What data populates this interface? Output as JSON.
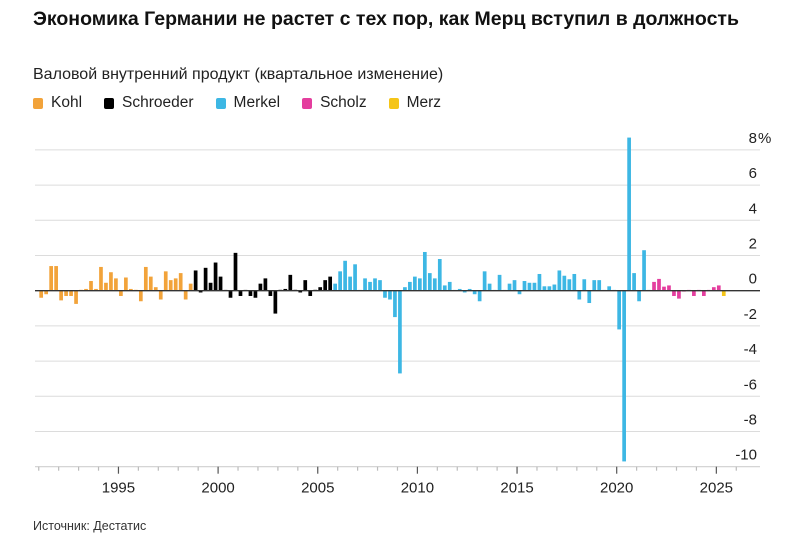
{
  "title": "Экономика Германии не растет с тех пор, как Мерц вступил в должность",
  "subtitle": "Валовой внутренний продукт (квартальное изменение)",
  "source": "Источник: Дестатис",
  "legend": [
    {
      "name": "Kohl",
      "color": "#F2A33A"
    },
    {
      "name": "Schroeder",
      "color": "#000000"
    },
    {
      "name": "Merkel",
      "color": "#3DB7E4"
    },
    {
      "name": "Scholz",
      "color": "#E43E9E"
    },
    {
      "name": "Merz",
      "color": "#F5C518"
    }
  ],
  "chart_data": {
    "type": "bar",
    "title": "Экономика Германии не растет с тех пор, как Мерц вступил в должность",
    "subtitle": "Валовой внутренний продукт (квартальное изменение)",
    "frequency": "quarterly",
    "start_quarter": "1991-Q1",
    "ylim": [
      -10,
      8
    ],
    "yticks": [
      -10,
      -8,
      -6,
      -4,
      -2,
      0,
      2,
      4,
      6,
      8
    ],
    "y_unit": "%",
    "y_axis_position": "right",
    "xticks": [
      1995,
      2000,
      2005,
      2010,
      2015,
      2020,
      2025
    ],
    "xlim": [
      1990.7,
      2026.9
    ],
    "grid": true,
    "legend_position": "top-left",
    "series": [
      {
        "name": "Kohl",
        "color": "#F2A33A",
        "values": [
          -0.4,
          -0.2,
          1.4,
          1.4,
          -0.55,
          -0.3,
          -0.3,
          -0.75,
          0.05,
          0.1,
          0.55,
          0.1,
          1.35,
          0.45,
          1.05,
          0.7,
          -0.3,
          0.75,
          0.1,
          0.05,
          -0.6,
          1.35,
          0.8,
          0.2,
          -0.5,
          1.1,
          0.6,
          0.7,
          1.0,
          -0.5,
          0.4
        ]
      },
      {
        "name": "Schroeder",
        "color": "#000000",
        "values": [
          1.15,
          -0.1,
          1.3,
          0.45,
          1.6,
          0.8,
          0.0,
          -0.4,
          2.15,
          -0.3,
          0.0,
          -0.3,
          -0.4,
          0.4,
          0.7,
          -0.3,
          -1.3,
          0.05,
          0.1,
          0.9,
          0.05,
          -0.1,
          0.6,
          -0.3,
          0.05,
          0.2,
          0.6,
          0.8
        ]
      },
      {
        "name": "Merkel",
        "color": "#3DB7E4",
        "values": [
          0.4,
          1.1,
          1.7,
          0.8,
          1.5,
          0.0,
          0.7,
          0.5,
          0.7,
          0.6,
          -0.4,
          -0.5,
          -1.5,
          -4.7,
          0.2,
          0.5,
          0.8,
          0.7,
          2.2,
          1.0,
          0.7,
          1.8,
          0.3,
          0.5,
          0.0,
          0.1,
          -0.1,
          0.1,
          -0.2,
          -0.6,
          1.1,
          0.4,
          0.0,
          0.9,
          0.0,
          0.4,
          0.6,
          -0.2,
          0.55,
          0.45,
          0.45,
          0.95,
          0.25,
          0.25,
          0.35,
          1.15,
          0.85,
          0.65,
          0.95,
          -0.5,
          0.65,
          -0.7,
          0.6,
          0.6,
          0.0,
          0.25,
          0.0,
          -2.2,
          -9.7,
          8.7,
          1.0,
          -0.6,
          2.3,
          0.0
        ]
      },
      {
        "name": "Scholz",
        "color": "#E43E9E",
        "values": [
          0.5,
          0.67,
          0.23,
          0.3,
          -0.3,
          -0.45,
          -0.05,
          0.0,
          -0.3,
          0.0,
          -0.3,
          0.0,
          0.2,
          0.3
        ]
      },
      {
        "name": "Merz",
        "color": "#F5C518",
        "values": [
          -0.3
        ]
      }
    ]
  }
}
